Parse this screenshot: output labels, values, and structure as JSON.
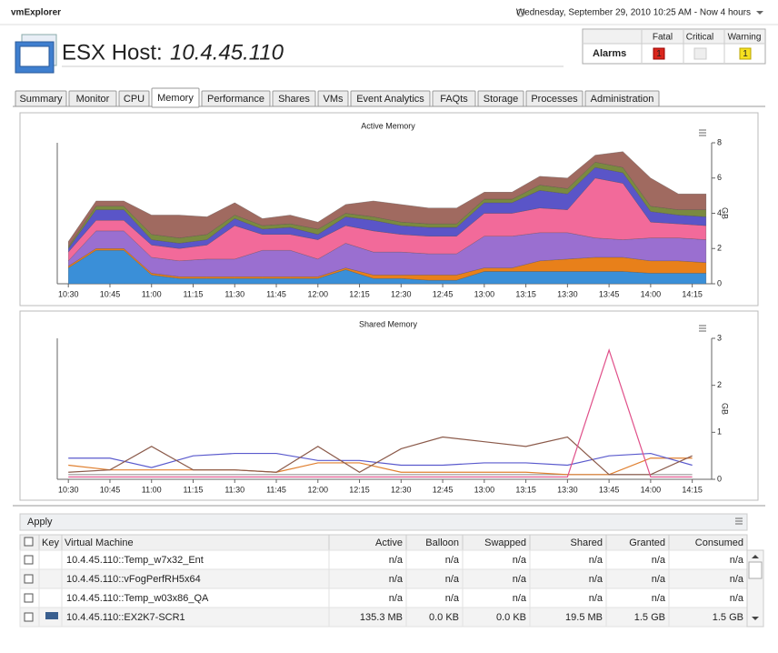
{
  "app_name": "vmExplorer",
  "timestamp": "Wednesday, September 29, 2010 10:25 AM - Now 4 hours",
  "header": {
    "label": "ESX Host:",
    "host": "10.4.45.110"
  },
  "alarms": {
    "columns": [
      "Fatal",
      "Critical",
      "Warning"
    ],
    "row_label": "Alarms",
    "fatal": 1,
    "warning": 1
  },
  "tabs": [
    "Summary",
    "Monitor",
    "CPU",
    "Memory",
    "Performance",
    "Shares",
    "VMs",
    "Event Analytics",
    "FAQts",
    "Storage",
    "Processes",
    "Administration"
  ],
  "active_tab": 3,
  "chart_data": [
    {
      "type": "area",
      "stacked": true,
      "title": "Active Memory",
      "y_label": "GB",
      "x": [
        "10:30",
        "10:40",
        "10:50",
        "11:00",
        "11:10",
        "11:20",
        "11:30",
        "11:40",
        "11:50",
        "12:00",
        "12:10",
        "12:20",
        "12:30",
        "12:40",
        "12:50",
        "13:00",
        "13:10",
        "13:20",
        "13:30",
        "13:40",
        "13:50",
        "14:00",
        "14:10",
        "14:20"
      ],
      "xlim": [
        "10:26",
        "14:22"
      ],
      "xticks": [
        "10:30",
        "10:45",
        "11:00",
        "11:15",
        "11:30",
        "11:45",
        "12:00",
        "12:15",
        "12:30",
        "12:45",
        "13:00",
        "13:15",
        "13:30",
        "13:45",
        "14:00",
        "14:15"
      ],
      "ylim": [
        0,
        8
      ],
      "yticks": [
        0,
        2,
        4,
        6,
        8
      ],
      "grid": false,
      "series": [
        {
          "color": "#3a8fd8",
          "values": [
            0.9,
            1.9,
            1.9,
            0.5,
            0.3,
            0.3,
            0.3,
            0.3,
            0.3,
            0.3,
            0.8,
            0.3,
            0.3,
            0.2,
            0.2,
            0.7,
            0.7,
            0.7,
            0.7,
            0.7,
            0.7,
            0.6,
            0.6,
            0.6
          ]
        },
        {
          "color": "#e8801a",
          "values": [
            0.1,
            0.1,
            0.1,
            0.1,
            0.1,
            0.1,
            0.1,
            0.1,
            0.1,
            0.1,
            0.1,
            0.2,
            0.2,
            0.3,
            0.3,
            0.2,
            0.2,
            0.6,
            0.7,
            0.8,
            0.8,
            0.7,
            0.7,
            0.6
          ]
        },
        {
          "color": "#9a6fd0",
          "values": [
            0.3,
            1.0,
            1.0,
            0.9,
            0.9,
            1.0,
            1.0,
            1.5,
            1.5,
            1.0,
            1.4,
            1.3,
            1.3,
            1.2,
            1.2,
            1.8,
            1.8,
            1.6,
            1.5,
            1.1,
            1.0,
            1.3,
            1.3,
            1.3
          ]
        },
        {
          "color": "#f26a9a",
          "values": [
            0.5,
            0.6,
            0.6,
            0.7,
            0.7,
            0.8,
            1.9,
            0.9,
            0.9,
            1.1,
            1.0,
            1.2,
            1.0,
            1.0,
            1.0,
            1.3,
            1.3,
            1.4,
            1.3,
            3.4,
            3.2,
            0.9,
            0.8,
            0.8
          ]
        },
        {
          "color": "#5a55c8",
          "values": [
            0.2,
            0.6,
            0.6,
            0.3,
            0.3,
            0.3,
            0.4,
            0.3,
            0.4,
            0.3,
            0.5,
            0.6,
            0.5,
            0.5,
            0.5,
            0.6,
            0.6,
            1.0,
            0.9,
            0.6,
            0.6,
            0.6,
            0.5,
            0.5
          ]
        },
        {
          "color": "#7a8a40",
          "values": [
            0.1,
            0.2,
            0.2,
            0.3,
            0.3,
            0.3,
            0.2,
            0.2,
            0.2,
            0.3,
            0.2,
            0.2,
            0.2,
            0.2,
            0.2,
            0.2,
            0.2,
            0.3,
            0.3,
            0.3,
            0.3,
            0.3,
            0.3,
            0.4
          ]
        },
        {
          "color": "#a06a60",
          "values": [
            0.3,
            0.3,
            0.3,
            1.1,
            1.3,
            1.0,
            0.7,
            0.4,
            0.5,
            0.4,
            0.5,
            0.9,
            1.0,
            0.9,
            0.9,
            0.4,
            0.4,
            0.5,
            0.6,
            0.4,
            0.9,
            1.6,
            0.9,
            0.9
          ]
        }
      ]
    },
    {
      "type": "line",
      "title": "Shared Memory",
      "y_label": "GB",
      "x": [
        "10:30",
        "10:45",
        "11:00",
        "11:15",
        "11:30",
        "11:45",
        "12:00",
        "12:15",
        "12:30",
        "12:45",
        "13:00",
        "13:15",
        "13:30",
        "13:45",
        "14:00",
        "14:15"
      ],
      "xlim": [
        "10:26",
        "14:22"
      ],
      "xticks": [
        "10:30",
        "10:45",
        "11:00",
        "11:15",
        "11:30",
        "11:45",
        "12:00",
        "12:15",
        "12:30",
        "12:45",
        "13:00",
        "13:15",
        "13:30",
        "13:45",
        "14:00",
        "14:15"
      ],
      "ylim": [
        0,
        3
      ],
      "yticks": [
        0,
        1,
        2,
        3
      ],
      "grid": false,
      "series": [
        {
          "color": "#999999",
          "values": [
            0.1,
            0.1,
            0.1,
            0.1,
            0.1,
            0.1,
            0.1,
            0.1,
            0.1,
            0.1,
            0.1,
            0.1,
            0.1,
            0.1,
            0.1,
            0.1
          ]
        },
        {
          "color": "#e08030",
          "values": [
            0.3,
            0.2,
            0.2,
            0.2,
            0.2,
            0.15,
            0.35,
            0.35,
            0.15,
            0.15,
            0.15,
            0.15,
            0.1,
            0.1,
            0.45,
            0.45
          ]
        },
        {
          "color": "#5a5acd",
          "values": [
            0.45,
            0.45,
            0.25,
            0.5,
            0.55,
            0.55,
            0.4,
            0.4,
            0.3,
            0.3,
            0.35,
            0.35,
            0.3,
            0.5,
            0.55,
            0.3
          ]
        },
        {
          "color": "#8b5a4a",
          "values": [
            0.15,
            0.2,
            0.7,
            0.2,
            0.2,
            0.15,
            0.7,
            0.15,
            0.65,
            0.9,
            0.8,
            0.7,
            0.9,
            0.1,
            0.1,
            0.5
          ]
        },
        {
          "color": "#e0508a",
          "values": [
            0.05,
            0.05,
            0.05,
            0.05,
            0.05,
            0.05,
            0.05,
            0.05,
            0.05,
            0.05,
            0.05,
            0.05,
            0.05,
            2.75,
            0.05,
            0.05
          ]
        }
      ]
    }
  ],
  "table": {
    "apply": "Apply",
    "columns": [
      "Key",
      "Virtual Machine",
      "Active",
      "Balloon",
      "Swapped",
      "Shared",
      "Granted",
      "Consumed"
    ],
    "rows": [
      {
        "vm": "10.4.45.110::Temp_w7x32_Ent",
        "cells": [
          "n/a",
          "n/a",
          "n/a",
          "n/a",
          "n/a",
          "n/a"
        ]
      },
      {
        "vm": "10.4.45.110::vFogPerfRH5x64",
        "cells": [
          "n/a",
          "n/a",
          "n/a",
          "n/a",
          "n/a",
          "n/a"
        ]
      },
      {
        "vm": "10.4.45.110::Temp_w03x86_QA",
        "cells": [
          "n/a",
          "n/a",
          "n/a",
          "n/a",
          "n/a",
          "n/a"
        ]
      },
      {
        "vm": "10.4.45.110::EX2K7-SCR1",
        "key_color": "#3a5f8f",
        "cells": [
          "135.3 MB",
          "0.0 KB",
          "0.0 KB",
          "19.5 MB",
          "1.5 GB",
          "1.5 GB"
        ]
      }
    ]
  }
}
